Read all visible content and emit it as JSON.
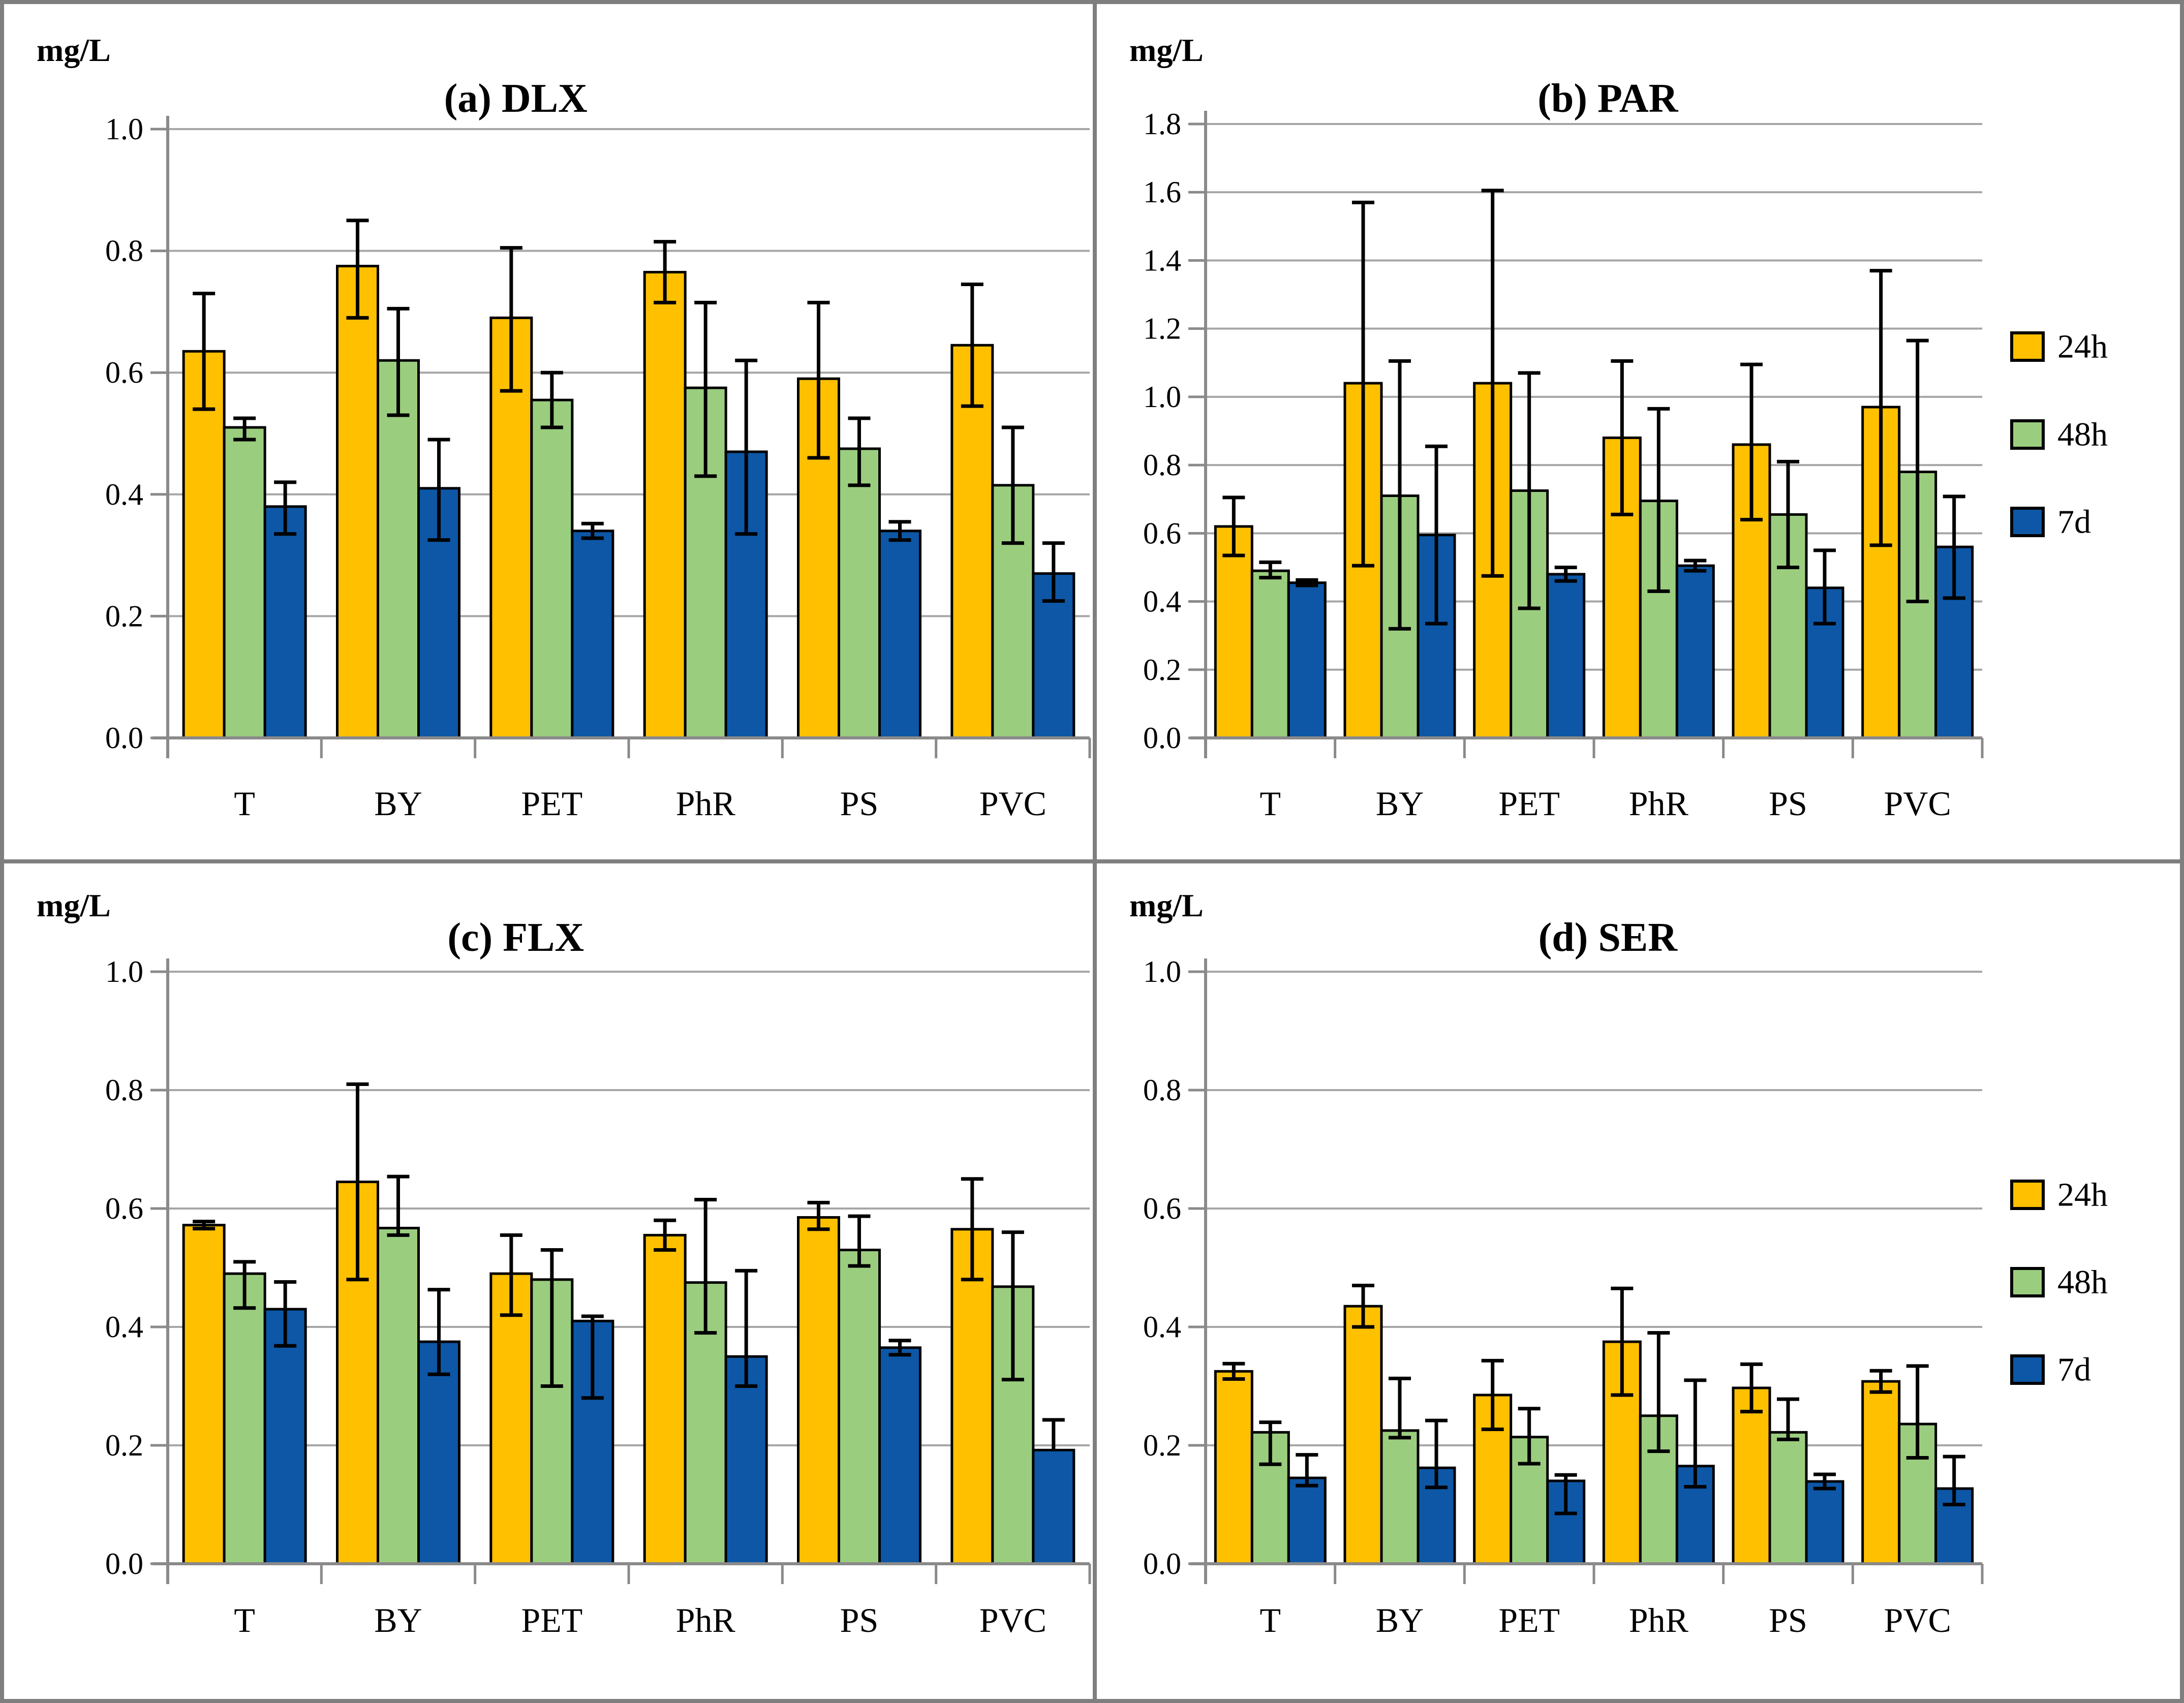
{
  "figure": {
    "unit_label": "mg/L",
    "categories": [
      "T",
      "BY",
      "PET",
      "PhR",
      "PS",
      "PVC"
    ]
  },
  "legend": {
    "items": [
      {
        "label": "24h",
        "color": "#FFC000"
      },
      {
        "label": "48h",
        "color": "#9BCD7F"
      },
      {
        "label": "7d",
        "color": "#0D57A6"
      }
    ]
  },
  "colors": {
    "series": [
      "#FFC000",
      "#9BCD7F",
      "#0D57A6"
    ],
    "bar_border": "#000000",
    "error_bar": "#000000",
    "gridline": "#A6A6A6",
    "axis": "#8A8A8A",
    "text": "#000000",
    "panel_border": "#7F7F7F",
    "background": "#FFFFFF"
  },
  "chart_data": [
    {
      "id": "a",
      "type": "bar",
      "title": "(a) DLX",
      "ylabel": "mg/L",
      "ylim": [
        0,
        1.0
      ],
      "ystep": 0.2,
      "grid": true,
      "legend_visible": false,
      "categories": [
        "T",
        "BY",
        "PET",
        "PhR",
        "PS",
        "PVC"
      ],
      "series": [
        {
          "name": "24h",
          "values": [
            [
              0.635,
              0.095,
              0.095
            ],
            [
              0.775,
              0.075,
              0.085
            ],
            [
              0.69,
              0.115,
              0.12
            ],
            [
              0.765,
              0.05,
              0.05
            ],
            [
              0.59,
              0.125,
              0.13
            ],
            [
              0.645,
              0.1,
              0.1
            ]
          ]
        },
        {
          "name": "48h",
          "values": [
            [
              0.51,
              0.015,
              0.02
            ],
            [
              0.62,
              0.085,
              0.09
            ],
            [
              0.555,
              0.045,
              0.045
            ],
            [
              0.575,
              0.14,
              0.145
            ],
            [
              0.475,
              0.05,
              0.06
            ],
            [
              0.415,
              0.095,
              0.095
            ]
          ]
        },
        {
          "name": "7d",
          "values": [
            [
              0.38,
              0.04,
              0.045
            ],
            [
              0.41,
              0.08,
              0.085
            ],
            [
              0.34,
              0.012,
              0.012
            ],
            [
              0.47,
              0.15,
              0.135
            ],
            [
              0.34,
              0.015,
              0.015
            ],
            [
              0.27,
              0.05,
              0.045
            ]
          ]
        }
      ]
    },
    {
      "id": "b",
      "type": "bar",
      "title": "(b) PAR",
      "ylabel": "mg/L",
      "ylim": [
        0,
        1.8
      ],
      "ystep": 0.2,
      "grid": true,
      "legend_visible": true,
      "legend_position": "right",
      "categories": [
        "T",
        "BY",
        "PET",
        "PhR",
        "PS",
        "PVC"
      ],
      "series": [
        {
          "name": "24h",
          "values": [
            [
              0.62,
              0.085,
              0.085
            ],
            [
              1.04,
              0.53,
              0.535
            ],
            [
              1.04,
              0.565,
              0.565
            ],
            [
              0.88,
              0.225,
              0.225
            ],
            [
              0.86,
              0.235,
              0.22
            ],
            [
              0.97,
              0.4,
              0.405
            ]
          ]
        },
        {
          "name": "48h",
          "values": [
            [
              0.49,
              0.025,
              0.02
            ],
            [
              0.71,
              0.395,
              0.39
            ],
            [
              0.725,
              0.345,
              0.345
            ],
            [
              0.695,
              0.27,
              0.265
            ],
            [
              0.655,
              0.155,
              0.155
            ],
            [
              0.78,
              0.385,
              0.38
            ]
          ]
        },
        {
          "name": "7d",
          "values": [
            [
              0.455,
              0.008,
              0.008
            ],
            [
              0.595,
              0.26,
              0.26
            ],
            [
              0.48,
              0.02,
              0.02
            ],
            [
              0.505,
              0.015,
              0.015
            ],
            [
              0.44,
              0.11,
              0.105
            ],
            [
              0.56,
              0.148,
              0.15
            ]
          ]
        }
      ]
    },
    {
      "id": "c",
      "type": "bar",
      "title": "(c) FLX",
      "ylabel": "mg/L",
      "ylim": [
        0,
        1.0
      ],
      "ystep": 0.2,
      "grid": true,
      "legend_visible": false,
      "categories": [
        "T",
        "BY",
        "PET",
        "PhR",
        "PS",
        "PVC"
      ],
      "series": [
        {
          "name": "24h",
          "values": [
            [
              0.572,
              0.006,
              0.006
            ],
            [
              0.645,
              0.165,
              0.165
            ],
            [
              0.49,
              0.065,
              0.07
            ],
            [
              0.555,
              0.025,
              0.025
            ],
            [
              0.585,
              0.025,
              0.02
            ],
            [
              0.565,
              0.085,
              0.085
            ]
          ]
        },
        {
          "name": "48h",
          "values": [
            [
              0.49,
              0.02,
              0.058
            ],
            [
              0.567,
              0.087,
              0.012
            ],
            [
              0.48,
              0.05,
              0.18
            ],
            [
              0.475,
              0.14,
              0.085
            ],
            [
              0.53,
              0.057,
              0.027
            ],
            [
              0.468,
              0.092,
              0.157
            ]
          ]
        },
        {
          "name": "7d",
          "values": [
            [
              0.43,
              0.046,
              0.062
            ],
            [
              0.375,
              0.088,
              0.055
            ],
            [
              0.41,
              0.008,
              0.13
            ],
            [
              0.35,
              0.145,
              0.05
            ],
            [
              0.365,
              0.012,
              0.012
            ],
            [
              0.192,
              0.051,
              0.0
            ]
          ]
        }
      ]
    },
    {
      "id": "d",
      "type": "bar",
      "title": "(d) SER",
      "ylabel": "mg/L",
      "ylim": [
        0,
        1.0
      ],
      "ystep": 0.2,
      "grid": true,
      "legend_visible": true,
      "legend_position": "right",
      "categories": [
        "T",
        "BY",
        "PET",
        "PhR",
        "PS",
        "PVC"
      ],
      "series": [
        {
          "name": "24h",
          "values": [
            [
              0.325,
              0.013,
              0.013
            ],
            [
              0.435,
              0.035,
              0.035
            ],
            [
              0.285,
              0.058,
              0.058
            ],
            [
              0.375,
              0.09,
              0.09
            ],
            [
              0.297,
              0.04,
              0.04
            ],
            [
              0.308,
              0.018,
              0.018
            ]
          ]
        },
        {
          "name": "48h",
          "values": [
            [
              0.222,
              0.017,
              0.054
            ],
            [
              0.225,
              0.088,
              0.012
            ],
            [
              0.214,
              0.048,
              0.045
            ],
            [
              0.25,
              0.14,
              0.06
            ],
            [
              0.222,
              0.056,
              0.012
            ],
            [
              0.236,
              0.098,
              0.057
            ]
          ]
        },
        {
          "name": "7d",
          "values": [
            [
              0.145,
              0.039,
              0.013
            ],
            [
              0.162,
              0.08,
              0.033
            ],
            [
              0.14,
              0.01,
              0.055
            ],
            [
              0.165,
              0.145,
              0.035
            ],
            [
              0.139,
              0.012,
              0.012
            ],
            [
              0.127,
              0.054,
              0.027
            ]
          ]
        }
      ]
    }
  ]
}
